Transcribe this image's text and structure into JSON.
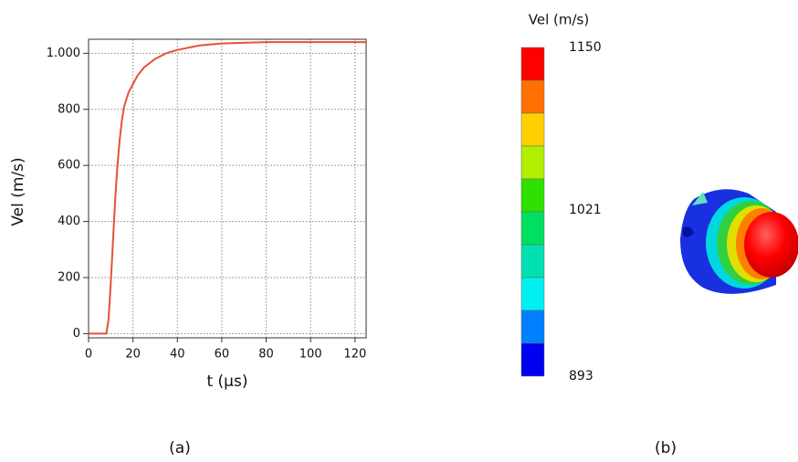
{
  "chart_data": {
    "type": "line",
    "x_label": "t (μs)",
    "y_label": "Vel (m/s)",
    "x": [
      0,
      8,
      9,
      10,
      11,
      12,
      13,
      14,
      15,
      16,
      18,
      20,
      22,
      25,
      30,
      35,
      40,
      50,
      60,
      80,
      100,
      125
    ],
    "series": [
      {
        "color": "#e8503a",
        "values": [
          0,
          0,
          50,
          180,
          330,
          480,
          600,
          690,
          760,
          810,
          860,
          890,
          920,
          950,
          980,
          1000,
          1012,
          1028,
          1035,
          1040,
          1040,
          1040
        ]
      }
    ],
    "xlim": [
      0,
      125
    ],
    "ylim": [
      -15,
      1050
    ],
    "xticks": [
      0,
      20,
      40,
      60,
      80,
      100,
      120
    ],
    "yticks": [
      0,
      200,
      400,
      600,
      800,
      {
        "value": 1000,
        "label": "1.000"
      }
    ],
    "grid": true
  },
  "colorbar": {
    "title": "Vel (m/s)",
    "ticks": [
      1150,
      1021,
      893
    ],
    "colors": [
      "#ff0000",
      "#ff7000",
      "#ffd000",
      "#b0f000",
      "#30e000",
      "#00e060",
      "#00e0b0",
      "#00f0f0",
      "#0080ff",
      "#0000f0"
    ]
  },
  "captions": [
    "(a)",
    "(b)"
  ]
}
